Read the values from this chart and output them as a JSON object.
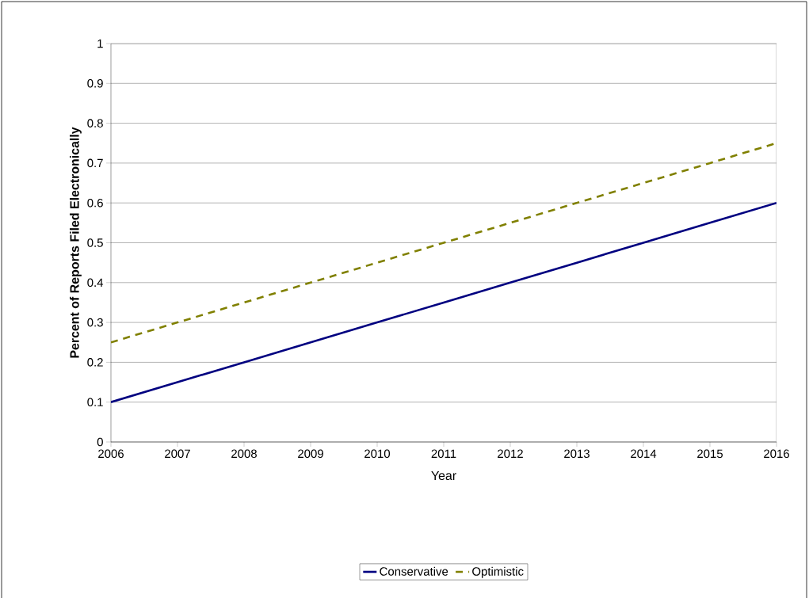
{
  "chart_data": {
    "type": "line",
    "xlabel": "Year",
    "ylabel": "Percent of Reports Filed Electronically",
    "x": [
      2006,
      2007,
      2008,
      2009,
      2010,
      2011,
      2012,
      2013,
      2014,
      2015,
      2016
    ],
    "series": [
      {
        "name": "Conservative",
        "color": "#000080",
        "line_style": "solid",
        "values": [
          0.1,
          0.15,
          0.2,
          0.25,
          0.3,
          0.35,
          0.4,
          0.45,
          0.5,
          0.55,
          0.6
        ]
      },
      {
        "name": "Optimistic",
        "color": "#808000",
        "line_style": "dashed",
        "values": [
          0.25,
          0.3,
          0.35,
          0.4,
          0.45,
          0.5,
          0.55,
          0.6,
          0.65,
          0.7,
          0.75
        ]
      }
    ],
    "xlim": [
      2006,
      2016
    ],
    "ylim": [
      0,
      1
    ],
    "xticks": [
      2006,
      2007,
      2008,
      2009,
      2010,
      2011,
      2012,
      2013,
      2014,
      2015,
      2016
    ],
    "yticks": [
      0,
      0.1,
      0.2,
      0.3,
      0.4,
      0.5,
      0.6,
      0.7,
      0.8,
      0.9,
      1
    ],
    "grid": "y",
    "legend": "bottom",
    "marker": "none"
  }
}
